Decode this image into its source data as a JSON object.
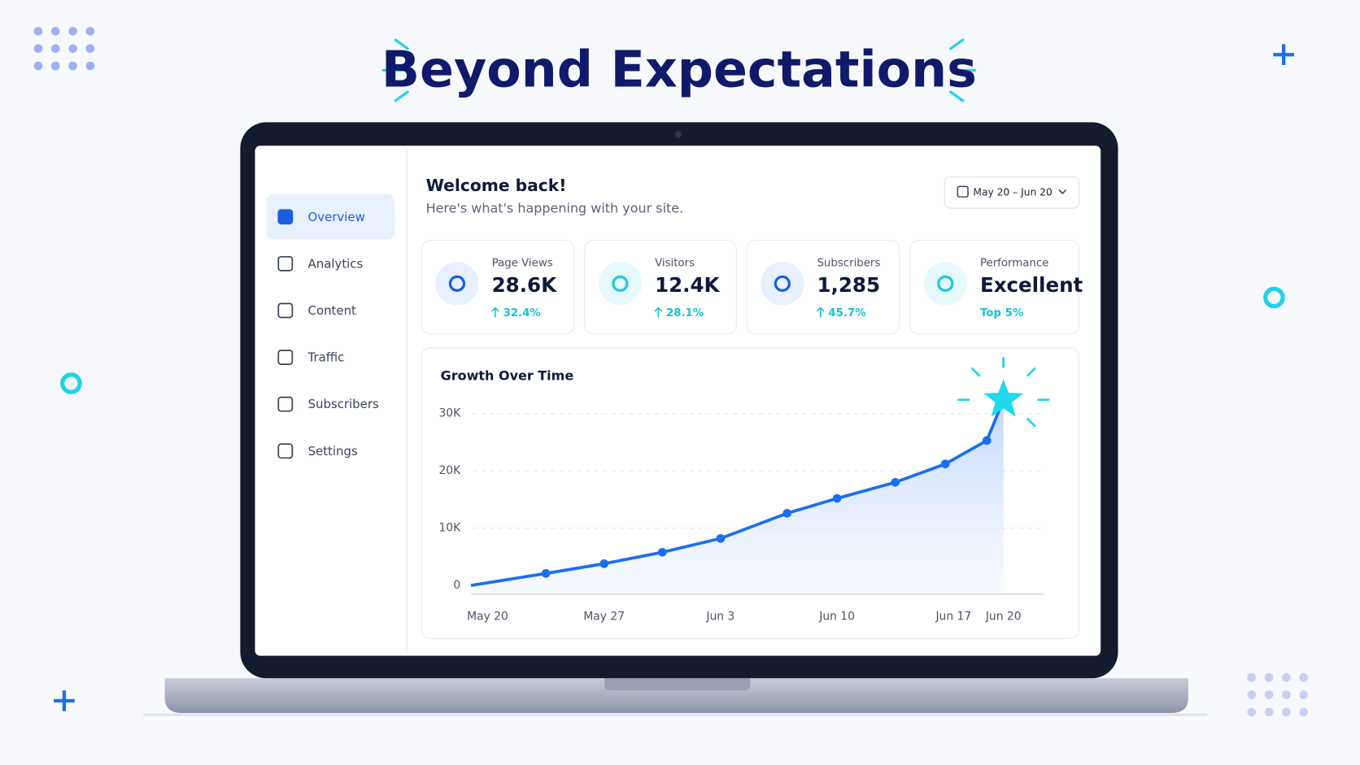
{
  "header": {
    "title": "Beyond Expectations"
  },
  "sidebar": {
    "items": [
      "Overview",
      "Analytics",
      "Content",
      "Traffic",
      "Subscribers",
      "Settings"
    ]
  },
  "welcome": {
    "title": "Welcome back!",
    "subtitle": "Here's what's happening with your site."
  },
  "date_range": "May 20 – Jun 20",
  "stats": [
    {
      "label": "Page Views",
      "value": "28.6K",
      "change": "32.4%"
    },
    {
      "label": "Visitors",
      "value": "12.4K",
      "change": "28.1%"
    },
    {
      "label": "Subscribers",
      "value": "1,285",
      "change": "45.7%"
    },
    {
      "label": "Performance",
      "value": "Excellent",
      "change": "Top 5%"
    }
  ],
  "chart_data": {
    "type": "line",
    "title": "Growth Over Time",
    "color": "#1a6ff0",
    "x": [
      -1,
      3.5,
      7,
      10.5,
      14,
      18,
      21,
      24.5,
      27.5,
      30,
      31
    ],
    "values": [
      0,
      2100,
      3800,
      5800,
      8200,
      12600,
      15200,
      18000,
      21200,
      25300,
      32400
    ],
    "xlim": [
      -1,
      33.4
    ],
    "ylim": [
      0,
      33000
    ],
    "xticks": [
      {
        "value": 0,
        "label": "May 20"
      },
      {
        "value": 7,
        "label": "May 27"
      },
      {
        "value": 14,
        "label": "Jun 3"
      },
      {
        "value": 21,
        "label": "Jun 10"
      },
      {
        "value": 28,
        "label": "Jun 17"
      },
      {
        "value": 31,
        "label": "Jun 20"
      }
    ],
    "yticks": [
      0,
      {
        "value": 10000,
        "label": "10K"
      },
      {
        "value": 20000,
        "label": "20K"
      },
      {
        "value": 30000,
        "label": "30K"
      }
    ],
    "grid": true
  }
}
